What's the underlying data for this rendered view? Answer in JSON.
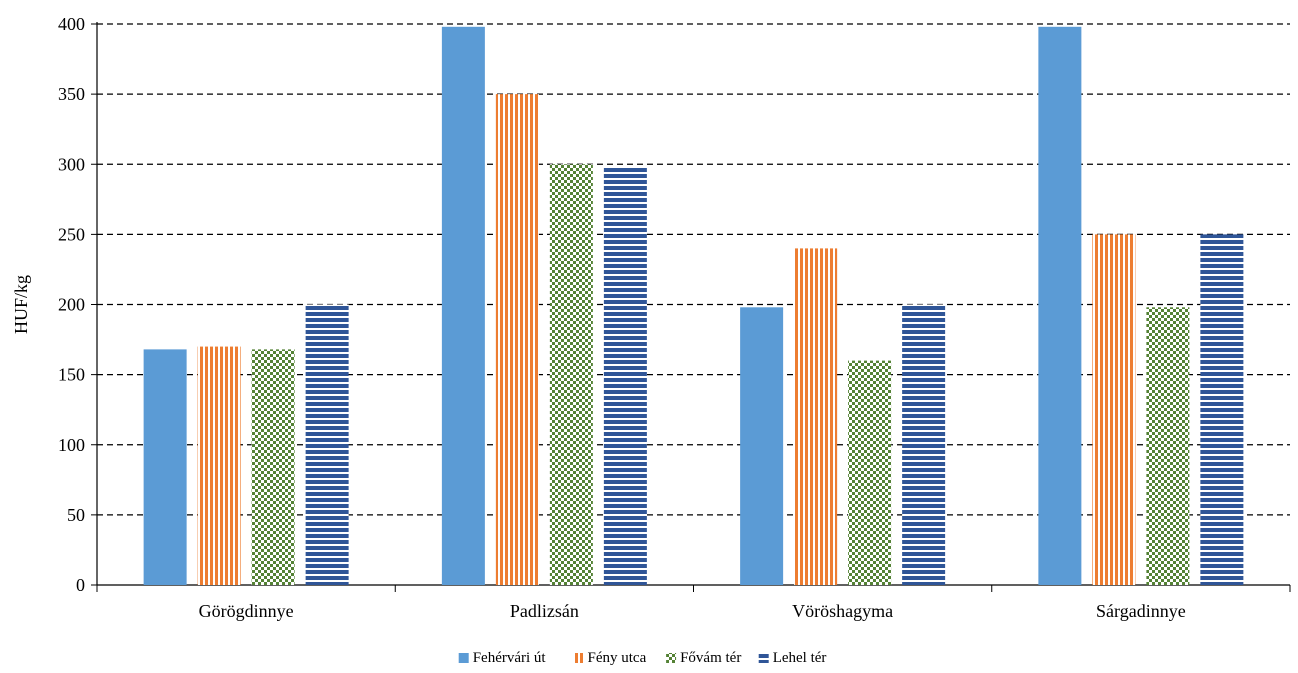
{
  "chart_data": {
    "type": "bar",
    "title": "",
    "xlabel": "",
    "ylabel": "HUF/kg",
    "ylim": [
      0,
      400
    ],
    "yticks": [
      0,
      50,
      100,
      150,
      200,
      250,
      300,
      350,
      400
    ],
    "grid": true,
    "legend_position": "bottom",
    "categories": [
      "Görögdinnye",
      "Padlizsán",
      "Vöröshagyma",
      "Sárgadinnye"
    ],
    "series": [
      {
        "name": "Fehérvári út",
        "values": [
          168,
          398,
          198,
          398
        ],
        "color": "#5b9bd5",
        "pattern": "solid"
      },
      {
        "name": "Fény utca",
        "values": [
          170,
          350,
          240,
          250
        ],
        "color": "#ed7d31",
        "pattern": "vertical-stripes"
      },
      {
        "name": "Fővám tér",
        "values": [
          168,
          300,
          160,
          198
        ],
        "color": "#548235",
        "pattern": "checker"
      },
      {
        "name": "Lehel tér",
        "values": [
          200,
          298,
          200,
          250
        ],
        "color": "#2f5597",
        "pattern": "horizontal-stripes"
      }
    ]
  }
}
